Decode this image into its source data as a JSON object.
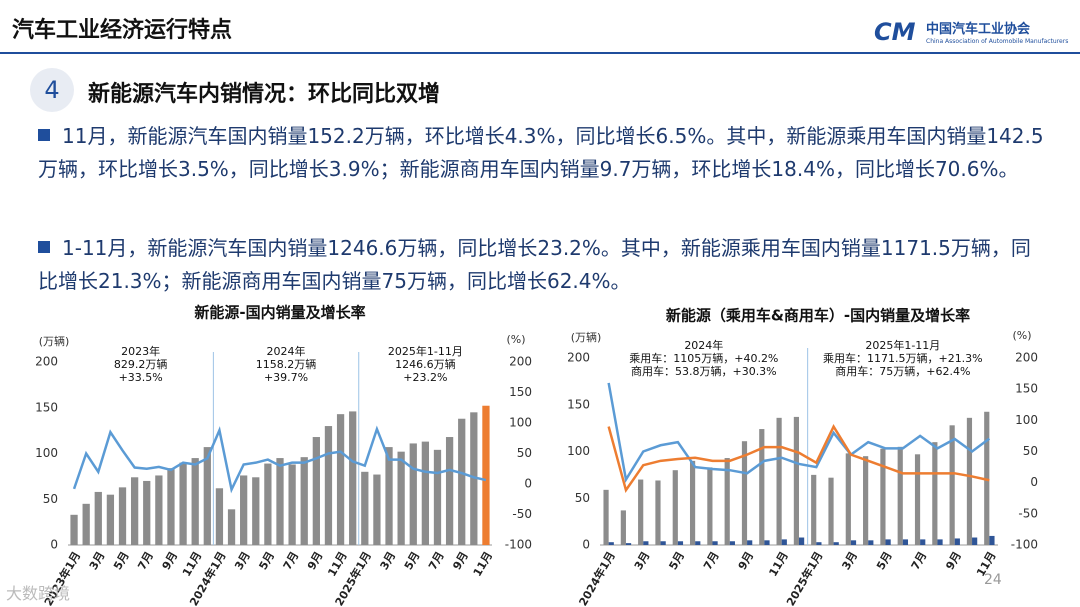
{
  "header": {
    "title": "汽车工业经济运行特点",
    "logo_cn": "中国汽车工业协会",
    "logo_en": "China Association of Automobile Manufacturers",
    "logo_mark": "CM"
  },
  "section": {
    "number": "4",
    "title": "新能源汽车内销情况：环比同比双增"
  },
  "bullets": [
    "11月，新能源汽车国内销量152.2万辆，环比增长4.3%，同比增长6.5%。其中，新能源乘用车国内销量142.5万辆，环比增长3.5%，同比增长3.9%；新能源商用车国内销量9.7万辆，环比增长18.4%，同比增长70.6%。",
    "1-11月，新能源汽车国内销量1246.6万辆，同比增长23.2%。其中，新能源乘用车国内销量1171.5万辆，同比增长21.3%；新能源商用车国内销量75万辆，同比增长62.4%。"
  ],
  "page_number": "24",
  "watermark": "大数跨境",
  "chart_data": [
    {
      "type": "combo",
      "title": "新能源-国内销量及增长率",
      "y_label": "(万辆)",
      "y2_label": "(%)",
      "categories": [
        "2023年1月",
        null,
        "3月",
        null,
        "5月",
        null,
        "7月",
        null,
        "9月",
        null,
        "11月",
        null,
        "2024年1月",
        null,
        "3月",
        null,
        "5月",
        null,
        "7月",
        null,
        "9月",
        null,
        "11月",
        null,
        "2025年1月",
        null,
        "3月",
        null,
        "5月",
        null,
        "7月",
        null,
        "9月",
        null,
        "11月"
      ],
      "series": [
        {
          "type": "bar",
          "color": "#8c8c8c",
          "highlight": {
            "index": 34,
            "color": "#ed7d31"
          },
          "values": [
            33,
            45,
            58,
            55,
            63,
            74,
            70,
            76,
            84,
            90,
            95,
            107,
            62,
            39,
            76,
            74,
            89,
            95,
            88,
            96,
            118,
            130,
            143,
            146,
            80,
            77,
            107,
            102,
            111,
            113,
            104,
            118,
            138,
            145,
            152.2
          ]
        },
        {
          "type": "line",
          "axis": "y2",
          "color": "#5b9bd5",
          "values": [
            -8,
            50,
            20,
            85,
            55,
            27,
            25,
            28,
            23,
            35,
            32,
            42,
            88,
            -9,
            32,
            35,
            40,
            30,
            35,
            35,
            42,
            50,
            53,
            37,
            30,
            90,
            40,
            40,
            25,
            20,
            18,
            23,
            18,
            11,
            6.5
          ]
        }
      ],
      "annotations": [
        [
          "2023年",
          "829.2万辆",
          "+33.5%"
        ],
        [
          "2024年",
          "1158.2万辆",
          "+39.7%"
        ],
        [
          "2025年1-11月",
          "1246.6万辆",
          "+23.2%"
        ]
      ],
      "ylim": [
        0,
        200
      ],
      "yticks": [
        0,
        50,
        100,
        150,
        200
      ],
      "y2lim": [
        -100,
        200
      ],
      "y2ticks": [
        -100,
        -50,
        0,
        50,
        100,
        150,
        200
      ],
      "grid": false
    },
    {
      "type": "combo",
      "title": "新能源（乘用车&商用车）-国内销量及增长率",
      "y_label": "(万辆)",
      "y2_label": "(%)",
      "categories": [
        "2024年1月",
        null,
        "3月",
        null,
        "5月",
        null,
        "7月",
        null,
        "9月",
        null,
        "11月",
        null,
        "2025年1月",
        null,
        "3月",
        null,
        "5月",
        null,
        "7月",
        null,
        "9月",
        null,
        "11月"
      ],
      "series": [
        {
          "type": "bar",
          "color": "#8c8c8c",
          "values": [
            59,
            37,
            70,
            69,
            80,
            90,
            83,
            93,
            111,
            124,
            136,
            137,
            75,
            72,
            98,
            95,
            103,
            105,
            97,
            110,
            128,
            136,
            142.5
          ]
        },
        {
          "type": "bar",
          "color": "#2f5597",
          "values": [
            3,
            2,
            4,
            4,
            4,
            4,
            4,
            4,
            5,
            5,
            6,
            8,
            3,
            3,
            5,
            5,
            6,
            6,
            6,
            6,
            7,
            8,
            9.7
          ]
        },
        {
          "type": "line",
          "axis": "y2",
          "color": "#5b9bd5",
          "values": [
            160,
            5,
            50,
            60,
            65,
            25,
            22,
            20,
            15,
            35,
            40,
            30,
            25,
            80,
            45,
            65,
            55,
            55,
            75,
            55,
            70,
            50,
            70.6
          ]
        },
        {
          "type": "line",
          "axis": "y2",
          "color": "#ed7d31",
          "values": [
            90,
            -12,
            28,
            35,
            38,
            40,
            35,
            35,
            45,
            57,
            57,
            48,
            32,
            90,
            45,
            35,
            25,
            15,
            15,
            15,
            15,
            10,
            3.9
          ]
        }
      ],
      "annotations": [
        [
          "2024年",
          "乘用车：1105万辆，+40.2%",
          "商用车：53.8万辆，+30.3%"
        ],
        [
          "2025年1-11月",
          "乘用车：1171.5万辆，+21.3%",
          "商用车：75万辆，+62.4%"
        ]
      ],
      "ylim": [
        0,
        200
      ],
      "yticks": [
        0,
        50,
        100,
        150,
        200
      ],
      "y2lim": [
        -100,
        200
      ],
      "y2ticks": [
        -100,
        -50,
        0,
        50,
        100,
        150,
        200
      ],
      "grid": false
    }
  ]
}
